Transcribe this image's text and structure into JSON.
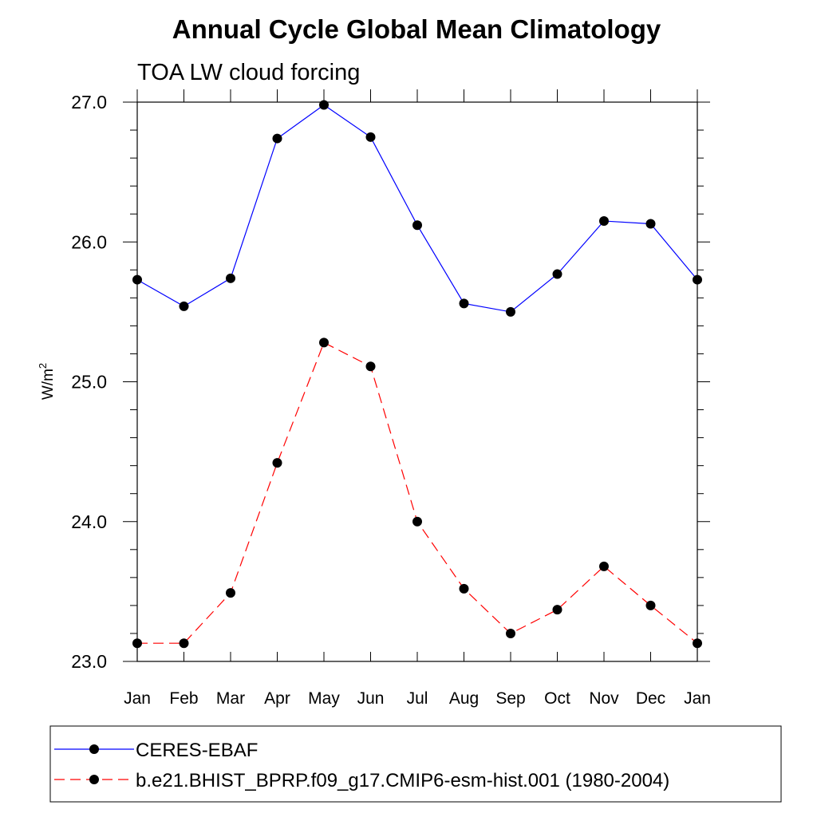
{
  "chart_data": {
    "type": "line",
    "title": "Annual Cycle Global Mean Climatology",
    "subtitle": "TOA LW cloud forcing",
    "ylabel": "W/m",
    "ylabel_superscript": "2",
    "ylim": [
      23.0,
      27.0
    ],
    "yticks": [
      "23.0",
      "24.0",
      "25.0",
      "26.0",
      "27.0"
    ],
    "categories": [
      "Jan",
      "Feb",
      "Mar",
      "Apr",
      "May",
      "Jun",
      "Jul",
      "Aug",
      "Sep",
      "Oct",
      "Nov",
      "Dec",
      "Jan"
    ],
    "series": [
      {
        "name": "CERES-EBAF",
        "color": "#0000ff",
        "line_style": "solid",
        "values": [
          25.73,
          25.54,
          25.74,
          26.74,
          26.98,
          26.75,
          26.12,
          25.56,
          25.5,
          25.77,
          26.15,
          26.13,
          25.73
        ]
      },
      {
        "name": "b.e21.BHIST_BPRP.f09_g17.CMIP6-esm-hist.001 (1980-2004)",
        "color": "#ff0000",
        "line_style": "dashed",
        "values": [
          23.13,
          23.13,
          23.49,
          24.42,
          25.28,
          25.11,
          24.0,
          23.52,
          23.2,
          23.37,
          23.68,
          23.4,
          23.13
        ]
      }
    ],
    "legend_position": "bottom",
    "grid": false
  }
}
